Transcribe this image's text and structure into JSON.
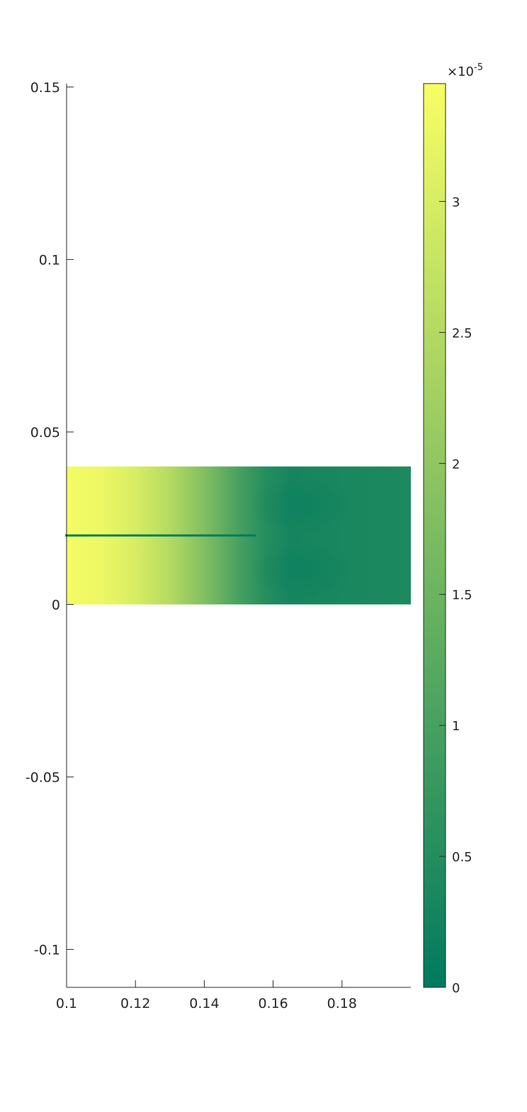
{
  "chart_data": {
    "type": "heatmap",
    "title": "",
    "xlabel": "",
    "ylabel": "",
    "xlim": [
      0.1,
      0.2
    ],
    "ylim": [
      -0.111,
      0.151
    ],
    "x_ticks": [
      {
        "value": 0.1,
        "label": "0.1"
      },
      {
        "value": 0.12,
        "label": "0.12"
      },
      {
        "value": 0.14,
        "label": "0.14"
      },
      {
        "value": 0.16,
        "label": "0.16"
      },
      {
        "value": 0.18,
        "label": "0.18"
      }
    ],
    "y_ticks": [
      {
        "value": 0.15,
        "label": "0.15"
      },
      {
        "value": 0.1,
        "label": "0.1"
      },
      {
        "value": 0.05,
        "label": "0.05"
      },
      {
        "value": 0,
        "label": "0"
      },
      {
        "value": -0.05,
        "label": "-0.05"
      },
      {
        "value": -0.1,
        "label": "-0.1"
      }
    ],
    "field_region": {
      "x": [
        0.1,
        0.2
      ],
      "y": [
        0,
        0.04
      ]
    },
    "crack": {
      "x": [
        0.1,
        0.155
      ],
      "y": 0.02
    },
    "field_profile": [
      {
        "x": 0.1,
        "value": 3.4e-05
      },
      {
        "x": 0.11,
        "value": 3.3e-05
      },
      {
        "x": 0.12,
        "value": 3e-05
      },
      {
        "x": 0.13,
        "value": 2.5e-05
      },
      {
        "x": 0.14,
        "value": 1.8e-05
      },
      {
        "x": 0.15,
        "value": 1e-05
      },
      {
        "x": 0.158,
        "value": 5e-06
      },
      {
        "x": 0.165,
        "value": 3e-06
      },
      {
        "x": 0.2,
        "value": 4e-06
      }
    ],
    "colorbar": {
      "exponent_label": "×10",
      "exponent": "-5",
      "range": [
        0,
        3.45
      ],
      "colors": [
        "#007a5e",
        "#f8fe64"
      ],
      "ticks": [
        {
          "value": 0,
          "label": "0"
        },
        {
          "value": 0.5,
          "label": "0.5"
        },
        {
          "value": 1,
          "label": "1"
        },
        {
          "value": 1.5,
          "label": "1.5"
        },
        {
          "value": 2,
          "label": "2"
        },
        {
          "value": 2.5,
          "label": "2.5"
        },
        {
          "value": 3,
          "label": "3"
        }
      ]
    }
  }
}
